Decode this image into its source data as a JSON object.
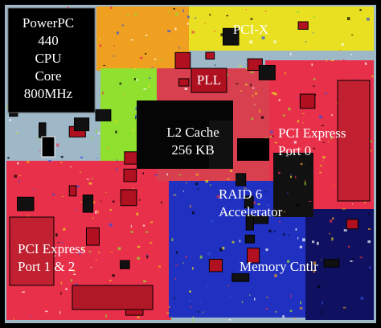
{
  "blocks": [
    {
      "name": "cpu",
      "lines": [
        "PowerPC",
        "440",
        "CPU",
        "Core",
        "800MHz"
      ]
    },
    {
      "name": "pcix",
      "lines": [
        "PCI-X"
      ]
    },
    {
      "name": "pll",
      "lines": [
        "PLL"
      ]
    },
    {
      "name": "l2",
      "lines": [
        "L2 Cache",
        "256 KB"
      ]
    },
    {
      "name": "pcie0",
      "lines": [
        "PCI Express",
        "Port 0"
      ]
    },
    {
      "name": "raid",
      "lines": [
        "RAID 6",
        "Accelerator"
      ]
    },
    {
      "name": "pcie12",
      "lines": [
        "PCI Express",
        "Port 1 & 2"
      ]
    },
    {
      "name": "mem",
      "lines": [
        "Memory Cntlr"
      ]
    }
  ]
}
